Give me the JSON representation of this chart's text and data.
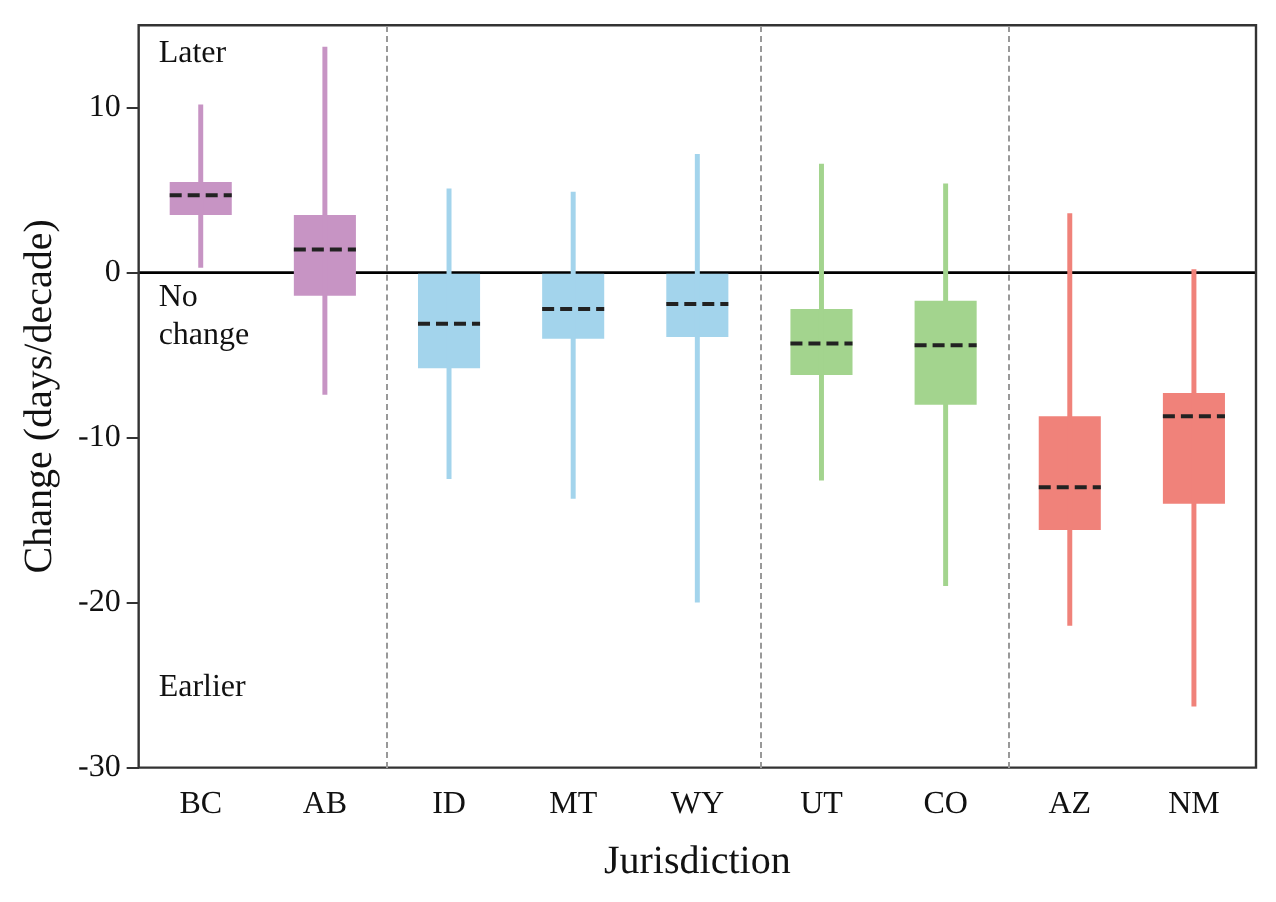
{
  "chart_data": {
    "type": "box",
    "xlabel": "Jurisdiction",
    "ylabel": "Change (days/decade)",
    "categories": [
      "BC",
      "AB",
      "ID",
      "MT",
      "WY",
      "UT",
      "CO",
      "AZ",
      "NM"
    ],
    "colors": [
      "#c794c4",
      "#c794c4",
      "#a3d4ec",
      "#a3d4ec",
      "#a3d4ec",
      "#a3d48e",
      "#a3d48e",
      "#f0827a",
      "#f0827a"
    ],
    "boxes": [
      {
        "low": 0.3,
        "q1": 3.5,
        "median": 4.7,
        "q3": 5.5,
        "high": 10.2
      },
      {
        "low": -7.4,
        "q1": -1.4,
        "median": 1.4,
        "q3": 3.5,
        "high": 13.7
      },
      {
        "low": -12.5,
        "q1": -5.8,
        "median": -3.1,
        "q3": 0,
        "high": 5.1
      },
      {
        "low": -13.7,
        "q1": -4,
        "median": -2.2,
        "q3": 0,
        "high": 4.9
      },
      {
        "low": -20,
        "q1": -3.9,
        "median": -1.9,
        "q3": 0,
        "high": 7.2
      },
      {
        "low": -12.6,
        "q1": -6.2,
        "median": -4.3,
        "q3": -2.2,
        "high": 6.6
      },
      {
        "low": -19,
        "q1": -8,
        "median": -4.4,
        "q3": -1.7,
        "high": 5.4
      },
      {
        "low": -21.4,
        "q1": -15.6,
        "median": -13,
        "q3": -8.7,
        "high": 3.6
      },
      {
        "low": -26.3,
        "q1": -14,
        "median": -8.7,
        "q3": -7.3,
        "high": 0.2
      }
    ],
    "ylim": [
      -30,
      15
    ],
    "yticks": [
      -30,
      -20,
      -10,
      0,
      10
    ],
    "ref_lines": [
      {
        "axis": "y",
        "value": 0,
        "color": "#000000"
      }
    ],
    "annotations": [
      "Later",
      "No\nchange",
      "Earlier"
    ],
    "grid": false,
    "legend": false
  }
}
